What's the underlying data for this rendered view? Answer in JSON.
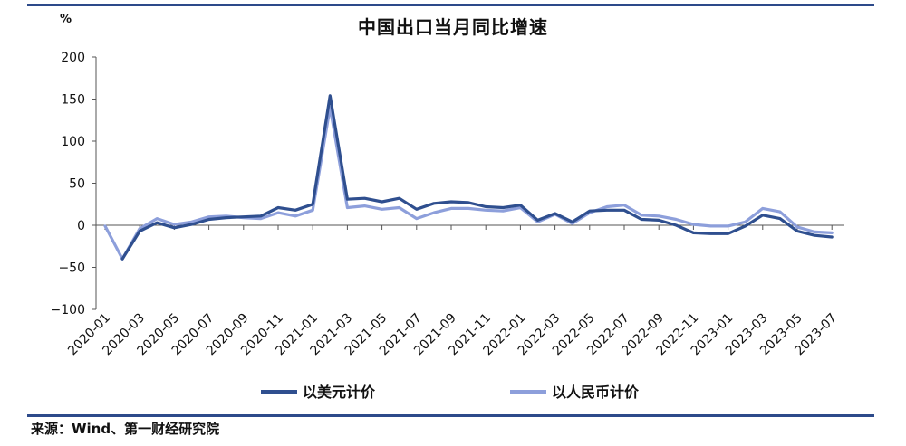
{
  "header": {
    "unit": "%",
    "title": "中国出口当月同比增速"
  },
  "footer": {
    "source": "来源：Wind、第一财经研究院"
  },
  "colors": {
    "usd": "#2f4f8f",
    "rmb": "#8d9fdb",
    "border": "#2d4a8a"
  },
  "chart_data": {
    "type": "line",
    "ylim": [
      -100,
      200
    ],
    "yticks": [
      -100,
      -50,
      0,
      50,
      100,
      150,
      200
    ],
    "ytick_labels": [
      "−100",
      "−50",
      "0",
      "50",
      "100",
      "150",
      "200"
    ],
    "x": [
      "2020-01",
      "2020-02",
      "2020-03",
      "2020-04",
      "2020-05",
      "2020-06",
      "2020-07",
      "2020-08",
      "2020-09",
      "2020-10",
      "2020-11",
      "2020-12",
      "2021-01",
      "2021-02",
      "2021-03",
      "2021-04",
      "2021-05",
      "2021-06",
      "2021-07",
      "2021-08",
      "2021-09",
      "2021-10",
      "2021-11",
      "2021-12",
      "2022-01",
      "2022-02",
      "2022-03",
      "2022-04",
      "2022-05",
      "2022-06",
      "2022-07",
      "2022-08",
      "2022-09",
      "2022-10",
      "2022-11",
      "2022-12",
      "2023-01",
      "2023-02",
      "2023-03",
      "2023-04",
      "2023-05",
      "2023-06",
      "2023-07"
    ],
    "xtick_labels": [
      "2020-01",
      "2020-03",
      "2020-05",
      "2020-07",
      "2020-09",
      "2020-11",
      "2021-01",
      "2021-03",
      "2021-05",
      "2021-07",
      "2021-09",
      "2021-11",
      "2022-01",
      "2022-03",
      "2022-05",
      "2022-07",
      "2022-09",
      "2022-11",
      "2023-01",
      "2023-03",
      "2023-05",
      "2023-07"
    ],
    "series": [
      {
        "name": "以美元计价",
        "values": [
          null,
          -40,
          -7,
          3,
          -3,
          1,
          7,
          9,
          10,
          11,
          21,
          18,
          25,
          154,
          31,
          32,
          28,
          32,
          19,
          26,
          28,
          27,
          22,
          21,
          24,
          6,
          14,
          4,
          17,
          18,
          18,
          7,
          6,
          0,
          -9,
          -10,
          -10,
          -1,
          12,
          8,
          -7,
          -12,
          -14
        ]
      },
      {
        "name": "以人民币计价",
        "values": [
          -1,
          -40,
          -4,
          8,
          1,
          4,
          10,
          11,
          9,
          8,
          15,
          11,
          18,
          140,
          21,
          23,
          19,
          21,
          8,
          15,
          20,
          20,
          18,
          17,
          21,
          4,
          13,
          2,
          15,
          22,
          24,
          12,
          11,
          7,
          1,
          -1,
          -1,
          4,
          20,
          16,
          -2,
          -8,
          -9
        ]
      }
    ]
  }
}
